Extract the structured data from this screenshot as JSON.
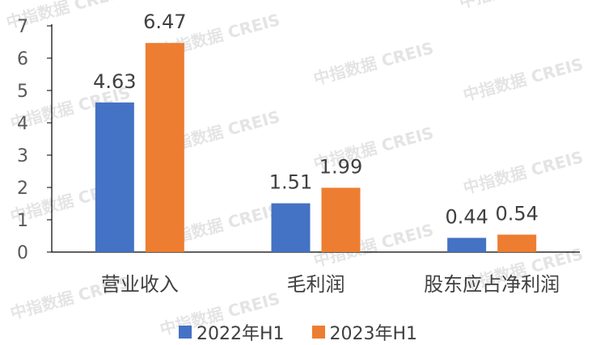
{
  "chart_data": {
    "type": "bar",
    "categories": [
      "营业收入",
      "毛利润",
      "股东应占净利润"
    ],
    "series": [
      {
        "name": "2022年H1",
        "values": [
          4.63,
          1.51,
          0.44
        ],
        "color": "#4472C4"
      },
      {
        "name": "2023年H1",
        "values": [
          6.47,
          1.99,
          0.54
        ],
        "color": "#ED7D31"
      }
    ],
    "yticks": [
      0,
      1,
      2,
      3,
      4,
      5,
      6,
      7
    ],
    "ylim": [
      0,
      7
    ],
    "grid": false,
    "legend_position": "bottom",
    "title": "",
    "xlabel": "",
    "ylabel": ""
  },
  "watermark": "中指数据 CREIS"
}
